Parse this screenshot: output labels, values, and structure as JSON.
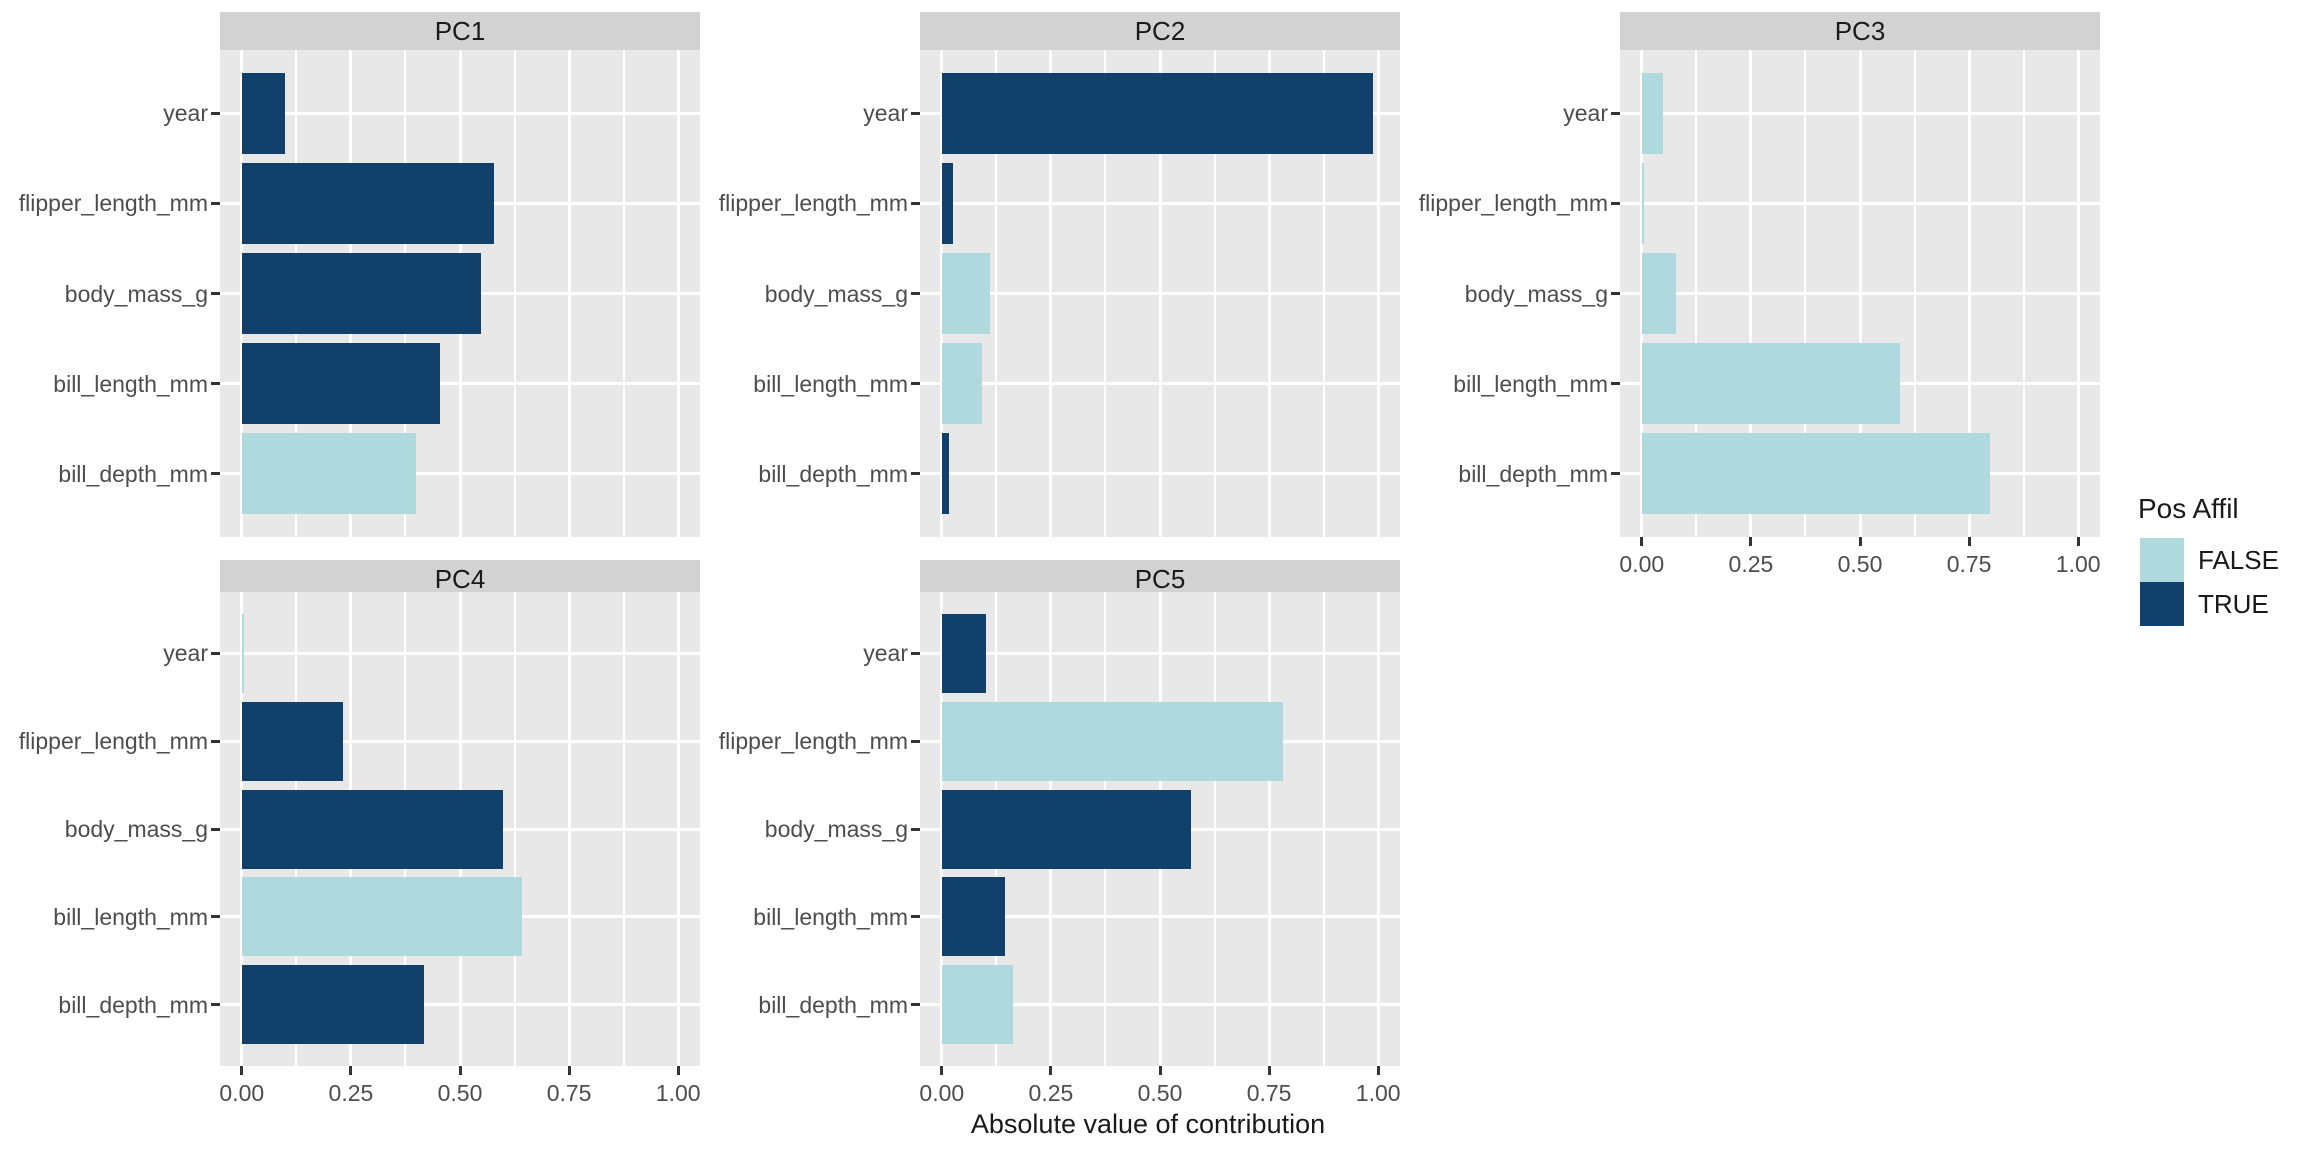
{
  "chart_data": {
    "type": "bar",
    "orientation": "horizontal",
    "xlabel": "Absolute value of contribution",
    "categories_top_to_bottom": [
      "year",
      "flipper_length_mm",
      "body_mass_g",
      "bill_length_mm",
      "bill_depth_mm"
    ],
    "x_ticks": {
      "labels": [
        "0.00",
        "0.25",
        "0.50",
        "0.75",
        "1.00"
      ],
      "values": [
        0,
        0.25,
        0.5,
        0.75,
        1.0
      ]
    },
    "x_minor_gridlines": [
      0.125,
      0.375,
      0.625,
      0.875
    ],
    "xlim_units": [
      -0.05,
      1.05
    ],
    "grid": "on",
    "legend": {
      "title": "Pos Affil",
      "position": "right",
      "entries": [
        {
          "label": "FALSE",
          "color": "#aedadd"
        },
        {
          "label": "TRUE",
          "color": "#11416a"
        }
      ]
    },
    "panels": [
      {
        "title": "PC1",
        "row": 0,
        "col": 0,
        "show_x_axis": false,
        "bars": [
          {
            "term": "year",
            "value": 0.098,
            "positive": true
          },
          {
            "term": "flipper_length_mm",
            "value": 0.577,
            "positive": true
          },
          {
            "term": "body_mass_g",
            "value": 0.548,
            "positive": true
          },
          {
            "term": "bill_length_mm",
            "value": 0.454,
            "positive": true
          },
          {
            "term": "bill_depth_mm",
            "value": 0.399,
            "positive": false
          }
        ]
      },
      {
        "title": "PC2",
        "row": 0,
        "col": 1,
        "show_x_axis": false,
        "bars": [
          {
            "term": "year",
            "value": 0.988,
            "positive": true
          },
          {
            "term": "flipper_length_mm",
            "value": 0.026,
            "positive": true
          },
          {
            "term": "body_mass_g",
            "value": 0.111,
            "positive": false
          },
          {
            "term": "bill_length_mm",
            "value": 0.093,
            "positive": false
          },
          {
            "term": "bill_depth_mm",
            "value": 0.017,
            "positive": true
          }
        ]
      },
      {
        "title": "PC3",
        "row": 0,
        "col": 2,
        "show_x_axis": true,
        "bars": [
          {
            "term": "year",
            "value": 0.049,
            "positive": false
          },
          {
            "term": "flipper_length_mm",
            "value": 0.005,
            "positive": false
          },
          {
            "term": "body_mass_g",
            "value": 0.078,
            "positive": false
          },
          {
            "term": "bill_length_mm",
            "value": 0.592,
            "positive": false
          },
          {
            "term": "bill_depth_mm",
            "value": 0.798,
            "positive": false
          }
        ]
      },
      {
        "title": "PC4",
        "row": 1,
        "col": 0,
        "show_x_axis": true,
        "bars": [
          {
            "term": "year",
            "value": 0.006,
            "positive": false
          },
          {
            "term": "flipper_length_mm",
            "value": 0.232,
            "positive": true
          },
          {
            "term": "body_mass_g",
            "value": 0.598,
            "positive": true
          },
          {
            "term": "bill_length_mm",
            "value": 0.641,
            "positive": false
          },
          {
            "term": "bill_depth_mm",
            "value": 0.418,
            "positive": true
          }
        ]
      },
      {
        "title": "PC5",
        "row": 1,
        "col": 1,
        "show_x_axis": true,
        "bars": [
          {
            "term": "year",
            "value": 0.102,
            "positive": true
          },
          {
            "term": "flipper_length_mm",
            "value": 0.782,
            "positive": false
          },
          {
            "term": "body_mass_g",
            "value": 0.571,
            "positive": true
          },
          {
            "term": "bill_length_mm",
            "value": 0.145,
            "positive": true
          },
          {
            "term": "bill_depth_mm",
            "value": 0.163,
            "positive": false
          }
        ]
      }
    ],
    "colors": {
      "bar_true": "#11416a",
      "bar_false": "#aedadd",
      "panel_bg": "#e8e8e8",
      "strip_bg": "#d2d2d2",
      "gridline": "#ffffff",
      "axis_text": "#4d4d4d",
      "tick_mark": "#333333",
      "title_text": "#1a1a1a",
      "background": "#ffffff"
    }
  }
}
